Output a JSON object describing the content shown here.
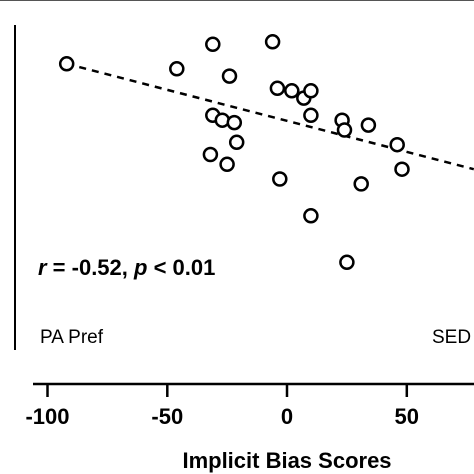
{
  "chart_data": {
    "type": "scatter",
    "title": "",
    "xlabel": "Implicit Bias Scores",
    "ylabel": "",
    "xlim": [
      -100,
      78
    ],
    "ylim": [
      -40,
      78
    ],
    "x_ticks": [
      -100,
      -50,
      0,
      50
    ],
    "x_tick_labels": [
      "-100",
      "-50",
      "0",
      "50"
    ],
    "grid": false,
    "points": [
      {
        "x": -92,
        "y": 67
      },
      {
        "x": -46,
        "y": 65
      },
      {
        "x": -31,
        "y": 75
      },
      {
        "x": -6,
        "y": 76
      },
      {
        "x": -24,
        "y": 62
      },
      {
        "x": -4,
        "y": 57
      },
      {
        "x": 2,
        "y": 56
      },
      {
        "x": 7,
        "y": 53
      },
      {
        "x": 10,
        "y": 56
      },
      {
        "x": 10,
        "y": 46
      },
      {
        "x": -31,
        "y": 46
      },
      {
        "x": -27,
        "y": 44
      },
      {
        "x": -22,
        "y": 43
      },
      {
        "x": -21,
        "y": 35
      },
      {
        "x": -32,
        "y": 30
      },
      {
        "x": -25,
        "y": 26
      },
      {
        "x": 23,
        "y": 44
      },
      {
        "x": 24,
        "y": 40
      },
      {
        "x": 34,
        "y": 42
      },
      {
        "x": 46,
        "y": 34
      },
      {
        "x": 48,
        "y": 24
      },
      {
        "x": 31,
        "y": 18
      },
      {
        "x": -3,
        "y": 20
      },
      {
        "x": 10,
        "y": 5
      },
      {
        "x": 25,
        "y": -14
      }
    ],
    "trendline": {
      "x": [
        -92,
        78
      ],
      "y": [
        67,
        24
      ]
    },
    "annotations": {
      "stat_r": "r",
      "stat_mid": " = -0.52, ",
      "stat_p": "p",
      "stat_end": " < 0.01",
      "left_label": "PA Pref",
      "right_label": "SED"
    }
  }
}
